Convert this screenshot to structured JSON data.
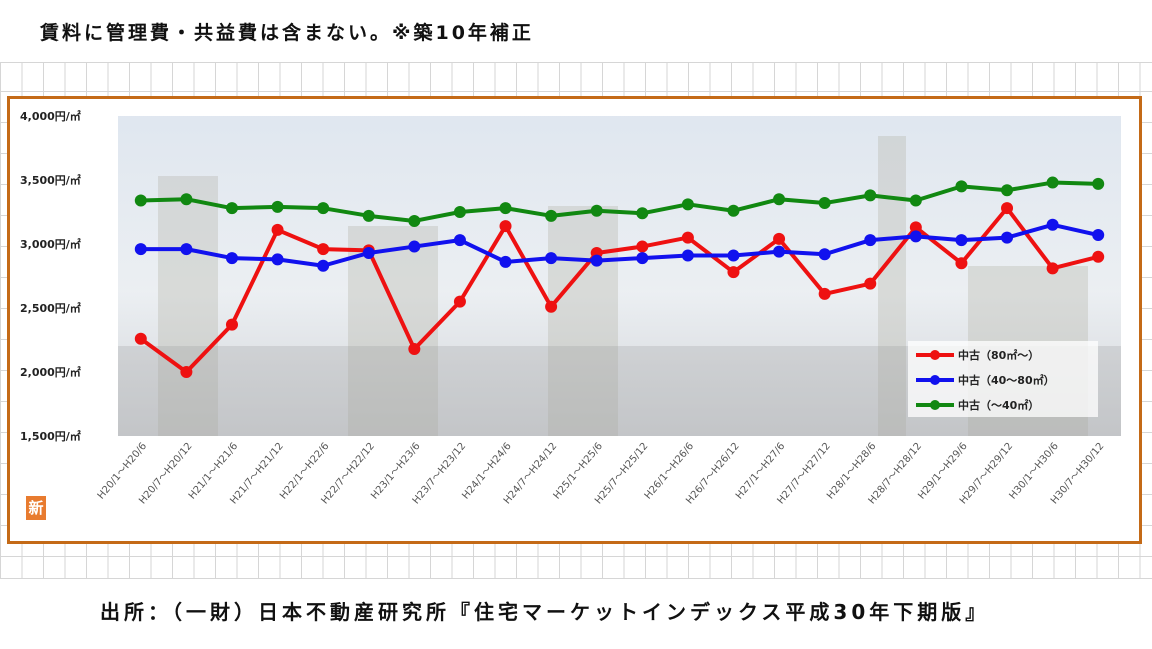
{
  "note": "賃料に管理費・共益費は含まない。※築10年補正",
  "source": "出所：（一財）日本不動産研究所『住宅マーケットインデックス平成30年下期版』",
  "badge": "新",
  "colors": {
    "frame": "#c46a17",
    "red": "#ee1111",
    "blue": "#1111ee",
    "green": "#118811"
  },
  "chart_data": {
    "type": "line",
    "ylim": [
      1500,
      4000
    ],
    "yticks": [
      1500,
      2000,
      2500,
      3000,
      3500,
      4000
    ],
    "ytick_labels": [
      "1,500円/㎡",
      "2,000円/㎡",
      "2,500円/㎡",
      "3,000円/㎡",
      "3,500円/㎡",
      "4,000円/㎡"
    ],
    "categories": [
      "H20/1～H20/6",
      "H20/7～H20/12",
      "H21/1～H21/6",
      "H21/7～H21/12",
      "H22/1～H22/6",
      "H22/7～H22/12",
      "H23/1～H23/6",
      "H23/7～H23/12",
      "H24/1～H24/6",
      "H24/7～H24/12",
      "H25/1～H25/6",
      "H25/7～H25/12",
      "H26/1～H26/6",
      "H26/7～H26/12",
      "H27/1～H27/6",
      "H27/7～H27/12",
      "H28/1～H28/6",
      "H28/7～H28/12",
      "H29/1～H29/6",
      "H29/7～H29/12",
      "H30/1～H30/6",
      "H30/7～H30/12"
    ],
    "series": [
      {
        "name": "中古（80㎡～）",
        "color": "#ee1111",
        "values": [
          2260,
          2000,
          2370,
          3110,
          2960,
          2950,
          2180,
          2550,
          3140,
          2510,
          2930,
          2980,
          3050,
          2780,
          3040,
          2610,
          2690,
          3130,
          2850,
          3280,
          2810,
          2900
        ]
      },
      {
        "name": "中古（40～80㎡）",
        "color": "#1111ee",
        "values": [
          2960,
          2960,
          2890,
          2880,
          2830,
          2930,
          2980,
          3030,
          2860,
          2890,
          2870,
          2890,
          2910,
          2910,
          2940,
          2920,
          3030,
          3060,
          3030,
          3050,
          3150,
          3070
        ]
      },
      {
        "name": "中古（～40㎡）",
        "color": "#118811",
        "values": [
          3340,
          3350,
          3280,
          3290,
          3280,
          3220,
          3180,
          3250,
          3280,
          3220,
          3260,
          3240,
          3310,
          3260,
          3350,
          3320,
          3380,
          3340,
          3450,
          3420,
          3480,
          3470
        ]
      }
    ],
    "legend_position": "right"
  }
}
